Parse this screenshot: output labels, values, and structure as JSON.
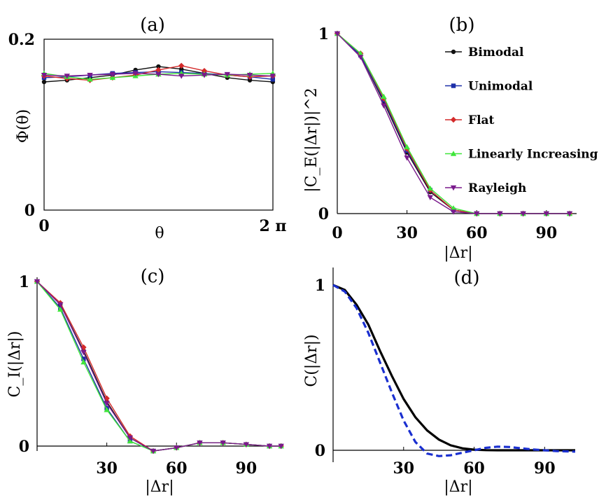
{
  "colors": {
    "Bimodal": "#111111",
    "Unimodal": "#1c2fa8",
    "Flat": "#d42a2a",
    "Linearly Increasing": "#3fe63a",
    "Rayleigh": "#7a1a8c",
    "model": "#000000",
    "dashed": "#1a2fd0"
  },
  "chart_data": [
    {
      "panel": "(a)",
      "type": "line",
      "title": "(a)",
      "xlabel": "θ",
      "ylabel": "Φ(θ)",
      "xlim": [
        0,
        6.2832
      ],
      "ylim": [
        0,
        0.2
      ],
      "xticks": [
        {
          "v": 0,
          "label": "0"
        },
        {
          "v": 6.2832,
          "label": "2 π"
        }
      ],
      "yticks": [
        {
          "v": 0,
          "label": "0"
        },
        {
          "v": 0.2,
          "label": "0.2"
        }
      ],
      "series": [
        {
          "name": "Bimodal",
          "marker": "circle",
          "x": [
            0,
            0.63,
            1.26,
            1.88,
            2.51,
            3.14,
            3.77,
            4.4,
            5.03,
            5.65,
            6.28
          ],
          "values": [
            0.15,
            0.152,
            0.155,
            0.158,
            0.164,
            0.168,
            0.165,
            0.16,
            0.155,
            0.152,
            0.15
          ]
        },
        {
          "name": "Unimodal",
          "marker": "square",
          "x": [
            0,
            0.63,
            1.26,
            1.88,
            2.51,
            3.14,
            3.77,
            4.4,
            5.03,
            5.65,
            6.28
          ],
          "values": [
            0.155,
            0.156,
            0.158,
            0.16,
            0.161,
            0.162,
            0.161,
            0.16,
            0.158,
            0.156,
            0.153
          ]
        },
        {
          "name": "Flat",
          "marker": "diamond",
          "x": [
            0,
            0.63,
            1.26,
            1.88,
            2.51,
            3.14,
            3.77,
            4.4,
            5.03,
            5.65,
            6.28
          ],
          "values": [
            0.157,
            0.154,
            0.152,
            0.155,
            0.158,
            0.164,
            0.169,
            0.163,
            0.158,
            0.156,
            0.157
          ]
        },
        {
          "name": "Linearly Increasing",
          "marker": "triangle-up",
          "x": [
            0,
            0.63,
            1.26,
            1.88,
            2.51,
            3.14,
            3.77,
            4.4,
            5.03,
            5.65,
            6.28
          ],
          "values": [
            0.16,
            0.156,
            0.153,
            0.155,
            0.157,
            0.159,
            0.16,
            0.159,
            0.158,
            0.159,
            0.16
          ]
        },
        {
          "name": "Rayleigh",
          "marker": "triangle-down",
          "x": [
            0,
            0.63,
            1.26,
            1.88,
            2.51,
            3.14,
            3.77,
            4.4,
            5.03,
            5.65,
            6.28
          ],
          "values": [
            0.158,
            0.157,
            0.158,
            0.159,
            0.16,
            0.159,
            0.157,
            0.158,
            0.159,
            0.158,
            0.157
          ]
        }
      ]
    },
    {
      "panel": "(b)",
      "type": "line",
      "title": "(b)",
      "xlabel": "|Δr|",
      "ylabel": "|C_E(|Δr|)|^2",
      "xlim": [
        0,
        103
      ],
      "ylim": [
        0,
        1
      ],
      "xticks": [
        {
          "v": 0,
          "label": "0"
        },
        {
          "v": 30,
          "label": "30"
        },
        {
          "v": 60,
          "label": "60"
        },
        {
          "v": 90,
          "label": "90"
        }
      ],
      "yticks": [
        {
          "v": 0,
          "label": "0"
        },
        {
          "v": 1,
          "label": "1"
        }
      ],
      "legend": [
        "Bimodal",
        "Unimodal",
        "Flat",
        "Linearly Increasing",
        "Rayleigh"
      ],
      "series": [
        {
          "name": "Bimodal",
          "marker": "circle",
          "x": [
            0,
            10,
            20,
            30,
            40,
            50,
            60,
            70,
            80,
            90,
            100
          ],
          "values": [
            1.0,
            0.88,
            0.62,
            0.34,
            0.12,
            0.02,
            0.0,
            0.0,
            0.0,
            0.0,
            0.0
          ]
        },
        {
          "name": "Unimodal",
          "marker": "square",
          "x": [
            0,
            10,
            20,
            30,
            40,
            50,
            60,
            70,
            80,
            90,
            100
          ],
          "values": [
            1.0,
            0.88,
            0.63,
            0.35,
            0.13,
            0.02,
            0.0,
            0.0,
            0.0,
            0.0,
            0.0
          ]
        },
        {
          "name": "Flat",
          "marker": "diamond",
          "x": [
            0,
            10,
            20,
            30,
            40,
            50,
            60,
            70,
            80,
            90,
            100
          ],
          "values": [
            1.0,
            0.89,
            0.64,
            0.36,
            0.13,
            0.02,
            0.0,
            0.0,
            0.0,
            0.0,
            0.0
          ]
        },
        {
          "name": "Linearly Increasing",
          "marker": "triangle-up",
          "x": [
            0,
            10,
            20,
            30,
            40,
            50,
            60,
            70,
            80,
            90,
            100
          ],
          "values": [
            1.0,
            0.89,
            0.65,
            0.37,
            0.14,
            0.03,
            0.0,
            0.0,
            0.0,
            0.0,
            0.0
          ]
        },
        {
          "name": "Rayleigh",
          "marker": "triangle-down",
          "x": [
            0,
            10,
            20,
            30,
            40,
            50,
            60,
            70,
            80,
            90,
            100
          ],
          "values": [
            1.0,
            0.87,
            0.6,
            0.31,
            0.09,
            0.01,
            0.0,
            0.0,
            0.0,
            0.0,
            0.0
          ]
        }
      ]
    },
    {
      "panel": "(c)",
      "type": "line",
      "title": "(c)",
      "xlabel": "|Δr|",
      "ylabel": "C_I(|Δr|)",
      "xlim": [
        0,
        106
      ],
      "ylim": [
        0,
        1
      ],
      "xticks": [
        {
          "v": 30,
          "label": "30"
        },
        {
          "v": 60,
          "label": "60"
        },
        {
          "v": 90,
          "label": "90"
        }
      ],
      "yticks": [
        {
          "v": 0,
          "label": "0"
        },
        {
          "v": 1,
          "label": "1"
        }
      ],
      "series": [
        {
          "name": "Bimodal",
          "marker": "circle",
          "x": [
            0,
            10,
            20,
            30,
            40,
            50,
            60,
            70,
            80,
            90,
            100,
            105
          ],
          "values": [
            1.0,
            0.86,
            0.58,
            0.27,
            0.05,
            -0.03,
            -0.01,
            0.02,
            0.02,
            0.01,
            0.0,
            0.0
          ]
        },
        {
          "name": "Unimodal",
          "marker": "square",
          "x": [
            0,
            10,
            20,
            30,
            40,
            50,
            60,
            70,
            80,
            90,
            100,
            105
          ],
          "values": [
            1.0,
            0.84,
            0.53,
            0.23,
            0.03,
            -0.03,
            -0.01,
            0.02,
            0.02,
            0.01,
            0.0,
            0.0
          ]
        },
        {
          "name": "Flat",
          "marker": "diamond",
          "x": [
            0,
            10,
            20,
            30,
            40,
            50,
            60,
            70,
            80,
            90,
            100,
            105
          ],
          "values": [
            1.0,
            0.87,
            0.6,
            0.29,
            0.06,
            -0.03,
            -0.01,
            0.02,
            0.02,
            0.01,
            0.0,
            0.0
          ]
        },
        {
          "name": "Linearly Increasing",
          "marker": "triangle-up",
          "x": [
            0,
            10,
            20,
            30,
            40,
            50,
            60,
            70,
            80,
            90,
            100,
            105
          ],
          "values": [
            1.0,
            0.83,
            0.51,
            0.22,
            0.03,
            -0.03,
            -0.01,
            0.02,
            0.02,
            0.01,
            0.0,
            0.0
          ]
        },
        {
          "name": "Rayleigh",
          "marker": "triangle-down",
          "x": [
            0,
            10,
            20,
            30,
            40,
            50,
            60,
            70,
            80,
            90,
            100,
            105
          ],
          "values": [
            1.0,
            0.86,
            0.57,
            0.26,
            0.05,
            -0.03,
            -0.01,
            0.02,
            0.02,
            0.01,
            0.0,
            0.0
          ]
        }
      ]
    },
    {
      "panel": "(d)",
      "type": "line",
      "title": "(d)",
      "xlabel": "|Δr|",
      "ylabel": "C(|Δr|)",
      "xlim": [
        0,
        103
      ],
      "ylim": [
        0,
        1
      ],
      "xticks": [
        {
          "v": 30,
          "label": "30"
        },
        {
          "v": 60,
          "label": "60"
        },
        {
          "v": 90,
          "label": "90"
        }
      ],
      "yticks": [
        {
          "v": 0,
          "label": "0"
        },
        {
          "v": 1,
          "label": "1"
        }
      ],
      "series": [
        {
          "name": "solid",
          "style": "solid",
          "x": [
            0,
            5,
            10,
            15,
            20,
            25,
            30,
            35,
            40,
            45,
            50,
            55,
            60,
            65,
            70,
            80,
            90,
            103
          ],
          "values": [
            1.0,
            0.97,
            0.88,
            0.76,
            0.6,
            0.45,
            0.31,
            0.2,
            0.12,
            0.065,
            0.03,
            0.012,
            0.004,
            0.001,
            0.0,
            0.0,
            0.0,
            0.0
          ]
        },
        {
          "name": "dashed",
          "style": "dashed",
          "x": [
            0,
            5,
            10,
            15,
            20,
            25,
            30,
            35,
            40,
            45,
            50,
            55,
            60,
            65,
            70,
            75,
            80,
            85,
            90,
            95,
            103
          ],
          "values": [
            1.0,
            0.96,
            0.86,
            0.71,
            0.53,
            0.35,
            0.18,
            0.05,
            -0.02,
            -0.035,
            -0.03,
            -0.015,
            0.0,
            0.015,
            0.022,
            0.02,
            0.012,
            0.005,
            0.0,
            -0.005,
            -0.008
          ]
        }
      ]
    }
  ]
}
